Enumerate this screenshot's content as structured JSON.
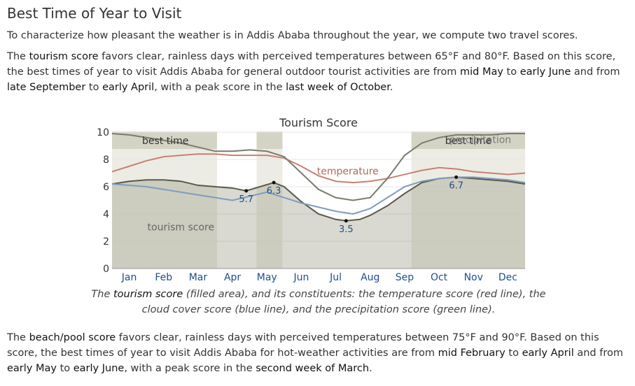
{
  "heading": "Best Time of Year to Visit",
  "para1": "To characterize how pleasant the weather is in Addis Ababa throughout the year, we compute two travel scores.",
  "para2": {
    "t1": "The ",
    "h1": "tourism score",
    "t2": " favors clear, rainless days with perceived temperatures between 65°F and 80°F. Based on this score, the best times of year to visit Addis Ababa for general outdoor tourist activities are from ",
    "h2": "mid May",
    "t3": " to ",
    "h3": "early June",
    "t4": " and from ",
    "h4": "late September",
    "t5": " to ",
    "h5": "early April",
    "t6": ", with a peak score in the ",
    "h6": "last week of October",
    "t7": "."
  },
  "caption": {
    "t1": "The ",
    "h1": "tourism score",
    "t2": " (filled area), and its constituents: the temperature score (red line), the cloud cover score (blue line), and the precipitation score (green line)."
  },
  "para3": {
    "t1": "The ",
    "h1": "beach/pool score",
    "t2": " favors clear, rainless days with perceived temperatures between 75°F and 90°F. Based on this score, the best times of year to visit Addis Ababa for hot-weather activities are from ",
    "h2": "mid February",
    "t3": " to ",
    "h3": "early April",
    "t4": " and from ",
    "h4": "early May",
    "t5": " to ",
    "h5": "early June",
    "t6": ", with a peak score in the ",
    "h6": "second week of March",
    "t7": "."
  },
  "chart_data": {
    "type": "area",
    "title": "Tourism Score",
    "categories": [
      "Jan",
      "Feb",
      "Mar",
      "Apr",
      "May",
      "Jun",
      "Jul",
      "Aug",
      "Sep",
      "Oct",
      "Nov",
      "Dec"
    ],
    "ylim": [
      0,
      10
    ],
    "yticks": [
      0,
      2,
      4,
      6,
      8,
      10
    ],
    "grid": true,
    "best_time_label": "best time",
    "best_time_ranges": [
      [
        0,
        3.05
      ],
      [
        4.2,
        4.95
      ],
      [
        8.7,
        12
      ]
    ],
    "series": [
      {
        "name": "tourism score",
        "role": "area",
        "color": "#6b6b55",
        "x": [
          0,
          0.5,
          1,
          1.5,
          2,
          2.5,
          3,
          3.5,
          3.9,
          4.3,
          4.7,
          5,
          5.5,
          6,
          6.5,
          6.8,
          7.2,
          7.5,
          8,
          8.5,
          9,
          9.5,
          10,
          10.5,
          11,
          11.5,
          12
        ],
        "y": [
          6.2,
          6.4,
          6.5,
          6.5,
          6.4,
          6.1,
          6.0,
          5.9,
          5.7,
          6.0,
          6.3,
          6.0,
          4.9,
          4.0,
          3.6,
          3.5,
          3.6,
          3.9,
          4.6,
          5.5,
          6.3,
          6.6,
          6.7,
          6.6,
          6.5,
          6.4,
          6.2
        ]
      },
      {
        "name": "temperature",
        "role": "line",
        "color": "#c98070",
        "x": [
          0,
          0.5,
          1,
          1.5,
          2,
          2.5,
          3,
          3.5,
          4,
          4.5,
          5,
          5.5,
          6,
          6.5,
          7,
          7.5,
          8,
          8.5,
          9,
          9.5,
          10,
          10.5,
          11,
          11.5,
          12
        ],
        "y": [
          7.1,
          7.5,
          7.9,
          8.2,
          8.3,
          8.4,
          8.4,
          8.3,
          8.3,
          8.3,
          8.1,
          7.5,
          6.8,
          6.4,
          6.3,
          6.4,
          6.6,
          6.9,
          7.2,
          7.4,
          7.3,
          7.1,
          7.0,
          6.9,
          7.0
        ]
      },
      {
        "name": "cloud cover",
        "role": "line",
        "color": "#7f9cbf",
        "x": [
          0,
          0.5,
          1,
          1.5,
          2,
          2.5,
          3,
          3.5,
          4,
          4.5,
          5,
          5.5,
          6,
          6.5,
          7,
          7.5,
          8,
          8.5,
          9,
          9.5,
          10,
          10.5,
          11,
          11.5,
          12
        ],
        "y": [
          6.2,
          6.1,
          6.0,
          5.8,
          5.6,
          5.4,
          5.2,
          5.0,
          5.3,
          5.6,
          5.2,
          4.8,
          4.5,
          4.2,
          4.0,
          4.4,
          5.2,
          6.0,
          6.4,
          6.6,
          6.7,
          6.7,
          6.6,
          6.5,
          6.3
        ]
      },
      {
        "name": "precipitation",
        "role": "line",
        "color": "#7a7a6e",
        "x": [
          0,
          0.5,
          1,
          1.5,
          2,
          2.5,
          3,
          3.5,
          4,
          4.5,
          5,
          5.5,
          6,
          6.5,
          7,
          7.5,
          8,
          8.5,
          9,
          9.5,
          10,
          10.5,
          11,
          11.5,
          12
        ],
        "y": [
          9.9,
          9.8,
          9.6,
          9.4,
          9.2,
          8.9,
          8.6,
          8.6,
          8.7,
          8.6,
          8.2,
          7.0,
          5.8,
          5.2,
          5.0,
          5.2,
          6.6,
          8.3,
          9.2,
          9.6,
          9.8,
          9.8,
          9.8,
          9.9,
          9.9
        ]
      }
    ],
    "series_labels": {
      "temperature": "temperature",
      "precipitation": "precipitation",
      "tourism": "tourism score"
    },
    "annotations": [
      {
        "x": 3.9,
        "y": 5.7,
        "label": "5.7"
      },
      {
        "x": 4.7,
        "y": 6.3,
        "label": "6.3"
      },
      {
        "x": 6.8,
        "y": 3.5,
        "label": "3.5"
      },
      {
        "x": 10.0,
        "y": 6.7,
        "label": "6.7"
      }
    ]
  },
  "colors": {
    "highlight_text": "#111111",
    "body_text": "#333333",
    "band_fill": "#dcdccf",
    "band_label_fill": "#d4d4c5"
  }
}
